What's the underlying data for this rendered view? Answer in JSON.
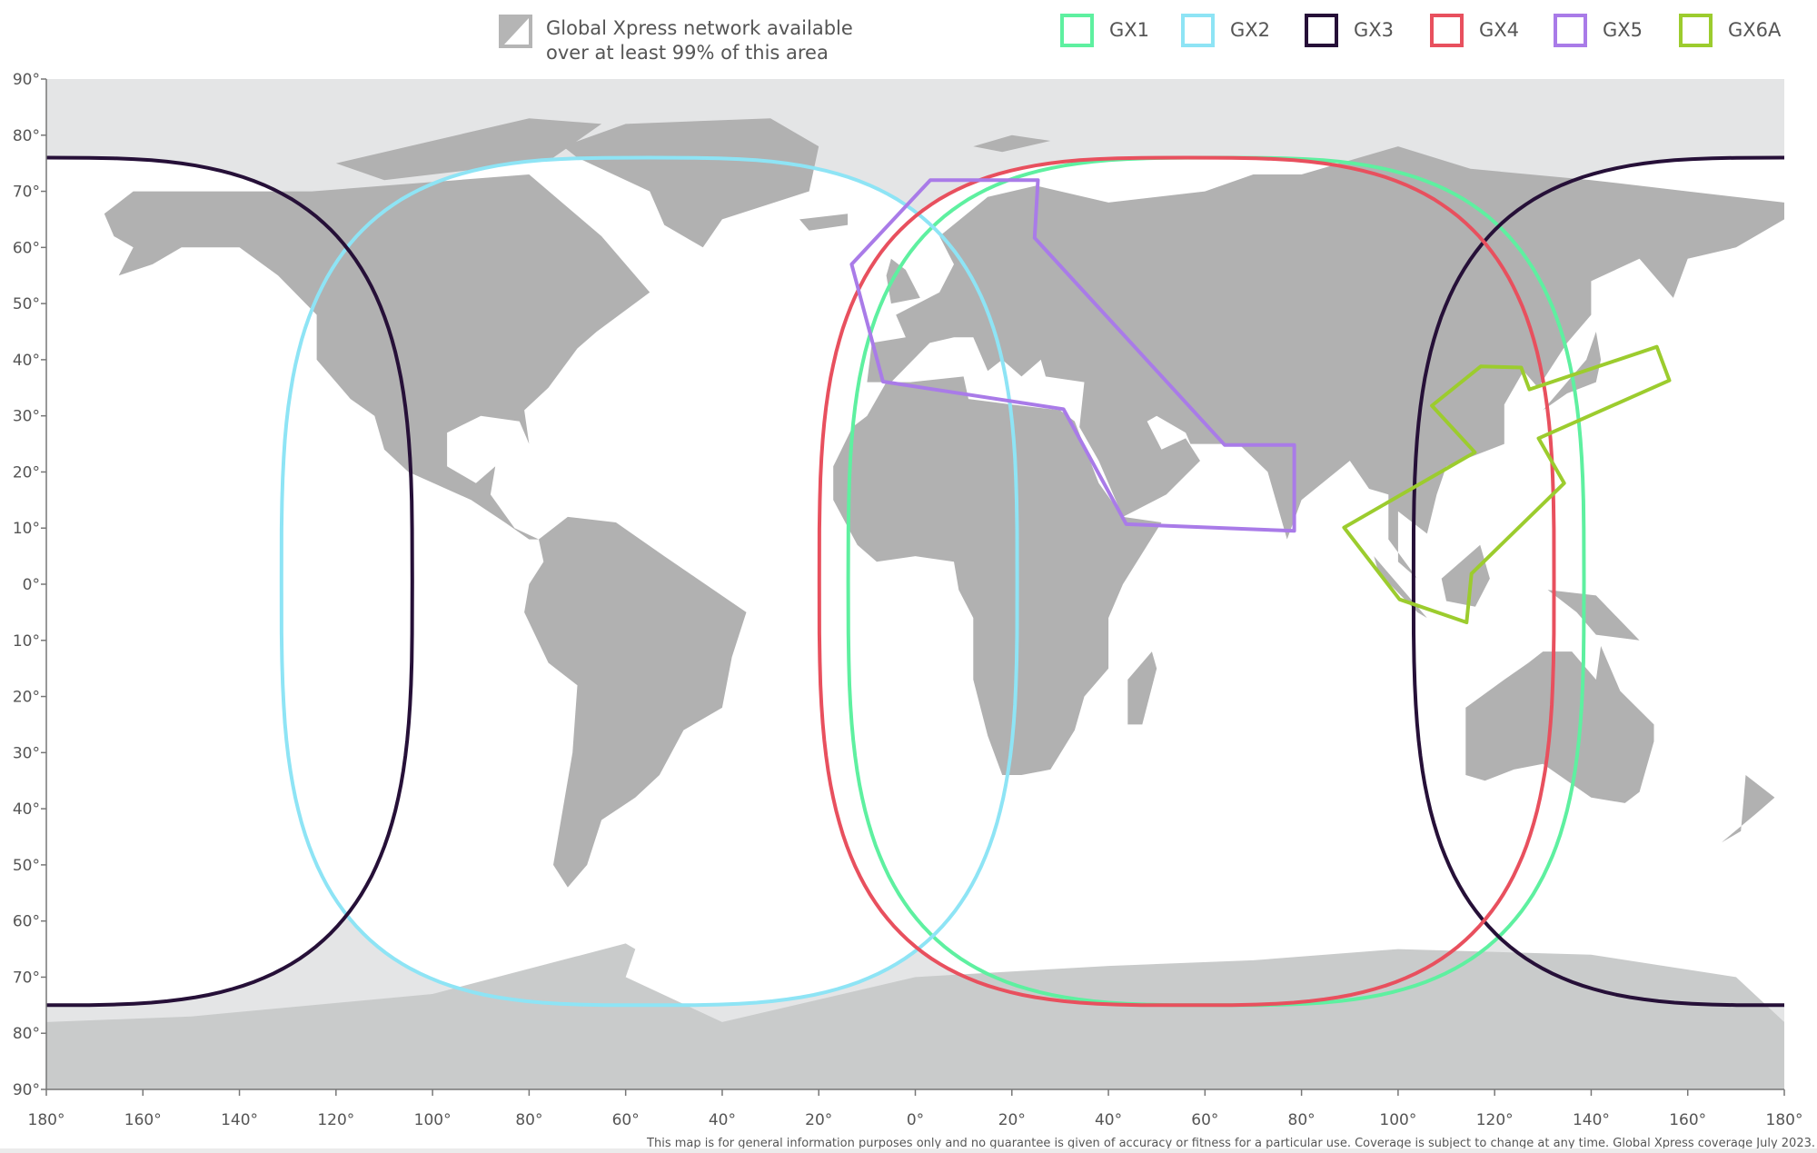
{
  "legend": {
    "availability_line1": "Global Xpress network available",
    "availability_line2": "over at least 99% of this area",
    "items": [
      {
        "label": "GX1",
        "color": "#5ef0a0"
      },
      {
        "label": "GX2",
        "color": "#8ee4f5"
      },
      {
        "label": "GX3",
        "color": "#261038"
      },
      {
        "label": "GX4",
        "color": "#e8505e"
      },
      {
        "label": "GX5",
        "color": "#a97be8"
      },
      {
        "label": "GX6A",
        "color": "#9ccc2e"
      }
    ]
  },
  "axes": {
    "lat_ticks": [
      "90°",
      "80°",
      "70°",
      "60°",
      "50°",
      "40°",
      "30°",
      "20°",
      "10°",
      "0°",
      "10°",
      "20°",
      "30°",
      "40°",
      "50°",
      "60°",
      "70°",
      "80°",
      "90°"
    ],
    "lon_ticks": [
      "180°",
      "160°",
      "140°",
      "120°",
      "100°",
      "80°",
      "60°",
      "40°",
      "20°",
      "0°",
      "20°",
      "40°",
      "60°",
      "80°",
      "100°",
      "120°",
      "140°",
      "160°",
      "180°"
    ],
    "lon_range": [
      -180,
      180
    ],
    "lat_range": [
      -90,
      90
    ],
    "projection": "equirectangular"
  },
  "coverage": {
    "beams": [
      {
        "name": "GX1",
        "center_lon": 62.3,
        "center_lat": 0.5,
        "half_width_deg": 76.2,
        "north_lat": 76,
        "south_lat": -75
      },
      {
        "name": "GX2",
        "center_lon": -55.1,
        "center_lat": 0.5,
        "half_width_deg": 76.2,
        "north_lat": 76,
        "south_lat": -75
      },
      {
        "name": "GX3",
        "center_lon": 179.5,
        "center_lat": 0.5,
        "half_width_deg": 76.3,
        "north_lat": 76,
        "south_lat": -75
      },
      {
        "name": "GX4",
        "center_lon": 56.2,
        "center_lat": 0.5,
        "half_width_deg": 76.1,
        "north_lat": 76,
        "south_lat": -75
      }
    ],
    "gx5_polygon": [
      [
        3.1,
        72.0
      ],
      [
        25.4,
        72.0
      ],
      [
        24.7,
        61.7
      ],
      [
        64.1,
        24.8
      ],
      [
        78.5,
        24.8
      ],
      [
        78.5,
        9.5
      ],
      [
        43.7,
        10.7
      ],
      [
        30.7,
        31.2
      ],
      [
        -6.7,
        36.1
      ],
      [
        -13.2,
        57.0
      ]
    ],
    "gx6a_polygon": [
      [
        88.8,
        10.1
      ],
      [
        115.9,
        23.5
      ],
      [
        107.0,
        31.8
      ],
      [
        117.1,
        38.8
      ],
      [
        125.5,
        38.6
      ],
      [
        127.2,
        34.7
      ],
      [
        153.6,
        42.3
      ],
      [
        156.2,
        36.3
      ],
      [
        129.1,
        26.0
      ],
      [
        134.4,
        18.0
      ],
      [
        115.2,
        1.9
      ],
      [
        114.2,
        -6.8
      ],
      [
        100.3,
        -2.7
      ]
    ]
  },
  "colors": {
    "land": "#b1b1b1",
    "uncovered": "#e4e5e6",
    "covered": "#ffffff",
    "antarctica": "#c9cbcb"
  },
  "footer": {
    "disclaimer": "This map is for general information purposes only and no guarantee is given of accuracy or fitness for a particular use. Coverage is subject to change at any time. Global Xpress coverage July 2023."
  }
}
